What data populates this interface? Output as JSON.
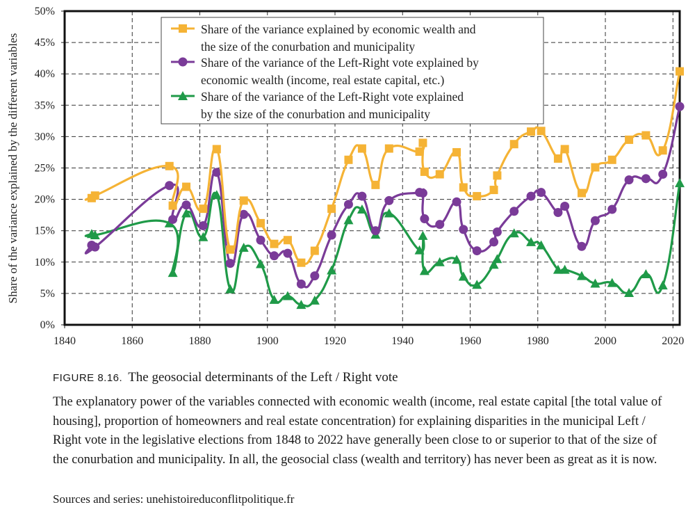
{
  "chart_data": {
    "type": "line",
    "ylabel": "Share of the variance explained by the different variables",
    "xlim": [
      1840,
      2022
    ],
    "ylim": [
      0,
      50
    ],
    "xticks": [
      "1840",
      "1860",
      "1880",
      "1900",
      "1920",
      "1940",
      "1960",
      "1980",
      "2000",
      "2020"
    ],
    "yticks": [
      "0%",
      "5%",
      "10%",
      "15%",
      "20%",
      "25%",
      "30%",
      "35%",
      "40%",
      "45%",
      "50%"
    ],
    "grid": true,
    "legend_position": "top-center",
    "series": [
      {
        "name": "Share of the variance explained by economic wealth and the size of the conurbation and municipality",
        "legend_lines": [
          "Share of the variance explained by economic wealth and",
          "the size of the conurbation and municipality"
        ],
        "color": "#f5b335",
        "marker": "square",
        "x": [
          1848,
          1849,
          1871,
          1872,
          1876,
          1881,
          1885,
          1889,
          1893,
          1898,
          1902,
          1906,
          1910,
          1914,
          1919,
          1924,
          1928,
          1932,
          1936,
          1945,
          1946,
          1946.5,
          1951,
          1956,
          1958,
          1962,
          1967,
          1968,
          1973,
          1978,
          1981,
          1986,
          1988,
          1993,
          1997,
          2002,
          2007,
          2012,
          2017,
          2022
        ],
        "y": [
          20.2,
          20.6,
          25.3,
          19.0,
          22.0,
          18.5,
          28.0,
          12.0,
          19.8,
          16.2,
          12.9,
          13.5,
          9.9,
          11.8,
          18.5,
          26.3,
          28.1,
          22.3,
          28.1,
          27.6,
          29.0,
          24.4,
          24.0,
          27.5,
          21.9,
          20.5,
          21.5,
          23.8,
          28.8,
          30.8,
          30.9,
          26.5,
          28.0,
          21.0,
          25.1,
          26.3,
          29.5,
          30.2,
          27.8,
          40.4
        ]
      },
      {
        "name": "Share of the variance of the Left-Right vote explained by economic wealth (income, real estate capital, etc.)",
        "legend_lines": [
          "Share of the variance of the Left-Right vote explained by",
          "economic wealth (income, real estate capital, etc.)"
        ],
        "color": "#7a3b98",
        "marker": "circle",
        "x": [
          1848,
          1849,
          1871,
          1872,
          1876,
          1881,
          1885,
          1889,
          1893,
          1898,
          1902,
          1906,
          1910,
          1914,
          1919,
          1924,
          1928,
          1932,
          1936,
          1945,
          1946,
          1946.5,
          1951,
          1956,
          1958,
          1962,
          1967,
          1968,
          1973,
          1978,
          1981,
          1986,
          1988,
          1993,
          1997,
          2002,
          2007,
          2012,
          2017,
          2022
        ],
        "y": [
          12.7,
          12.4,
          22.2,
          16.8,
          19.1,
          15.8,
          24.3,
          9.8,
          17.6,
          13.5,
          11.0,
          11.4,
          6.5,
          7.8,
          14.3,
          19.2,
          20.5,
          15.0,
          19.8,
          21.1,
          21.0,
          16.9,
          16.0,
          19.6,
          15.2,
          11.8,
          13.2,
          14.8,
          18.1,
          20.5,
          21.1,
          17.9,
          18.9,
          12.5,
          16.6,
          18.4,
          23.1,
          23.3,
          24.0,
          34.8
        ]
      },
      {
        "name": "Share of the variance of the Left-Right vote explained by the size of the conurbation and municipality",
        "legend_lines": [
          "Share of the variance of the Left-Right vote explained",
          "by the size of the conurbation and municipality"
        ],
        "color": "#1f9a48",
        "marker": "triangle",
        "x": [
          1848,
          1849,
          1871,
          1872,
          1876,
          1881,
          1885,
          1889,
          1893,
          1898,
          1902,
          1906,
          1910,
          1914,
          1919,
          1924,
          1928,
          1932,
          1936,
          1945,
          1946,
          1946.5,
          1951,
          1956,
          1958,
          1962,
          1967,
          1968,
          1973,
          1978,
          1981,
          1986,
          1988,
          1993,
          1997,
          2002,
          2007,
          2012,
          2017,
          2022
        ],
        "y": [
          14.5,
          14.3,
          16.2,
          8.3,
          17.8,
          14.0,
          20.7,
          5.7,
          12.3,
          9.7,
          4.0,
          4.6,
          3.2,
          3.9,
          8.7,
          16.7,
          18.4,
          14.4,
          17.8,
          11.9,
          14.2,
          8.6,
          10.0,
          10.4,
          7.7,
          6.4,
          9.6,
          10.5,
          14.6,
          13.2,
          12.7,
          8.8,
          8.8,
          7.8,
          6.6,
          6.7,
          5.1,
          8.1,
          6.3,
          22.6
        ]
      }
    ]
  },
  "caption": {
    "figure_number": "FIGURE 8.16.",
    "figure_title": "The geosocial determinants of the Left / Right vote",
    "description": "The explanatory power of the variables connected with economic wealth (income, real estate capital [the total value of housing], proportion of homeowners and real estate concentration) for explaining disparities in the municipal Left / Right vote in the legislative elections from 1848 to 2022 have generally been close to or superior to that of the size of the conurbation and municipality. In all, the geosocial class (wealth and territory) has never been as great as it is now.",
    "sources": "Sources and series: unehistoireduconflitpolitique.fr"
  }
}
